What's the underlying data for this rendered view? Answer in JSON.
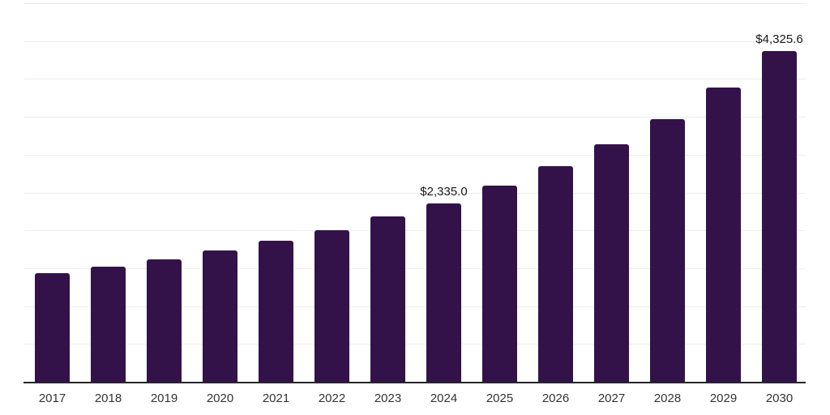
{
  "chart_data": {
    "type": "bar",
    "title": "",
    "xlabel": "",
    "ylabel": "",
    "categories": [
      "2017",
      "2018",
      "2019",
      "2020",
      "2021",
      "2022",
      "2023",
      "2024",
      "2025",
      "2026",
      "2027",
      "2028",
      "2029",
      "2030"
    ],
    "values": [
      1425,
      1510,
      1605,
      1715,
      1845,
      1985,
      2165,
      2335.0,
      2570,
      2815,
      3105,
      3435,
      3845,
      4325.6
    ],
    "point_labels": [
      "",
      "",
      "",
      "",
      "",
      "",
      "",
      "$2,335.0",
      "",
      "",
      "",
      "",
      "",
      "$4,325.6"
    ],
    "ylim": [
      0,
      4950
    ],
    "y_axis_tick_labels_visible": false,
    "gridline_count": 10,
    "grid": "horizontal",
    "legend_position": "none",
    "colors": {
      "bar": "#33124a",
      "gridline": "#ededed",
      "axis_line": "#262626",
      "x_tick_text": "#333333",
      "data_label_text": "#1a1a1a",
      "background": "#ffffff"
    }
  }
}
